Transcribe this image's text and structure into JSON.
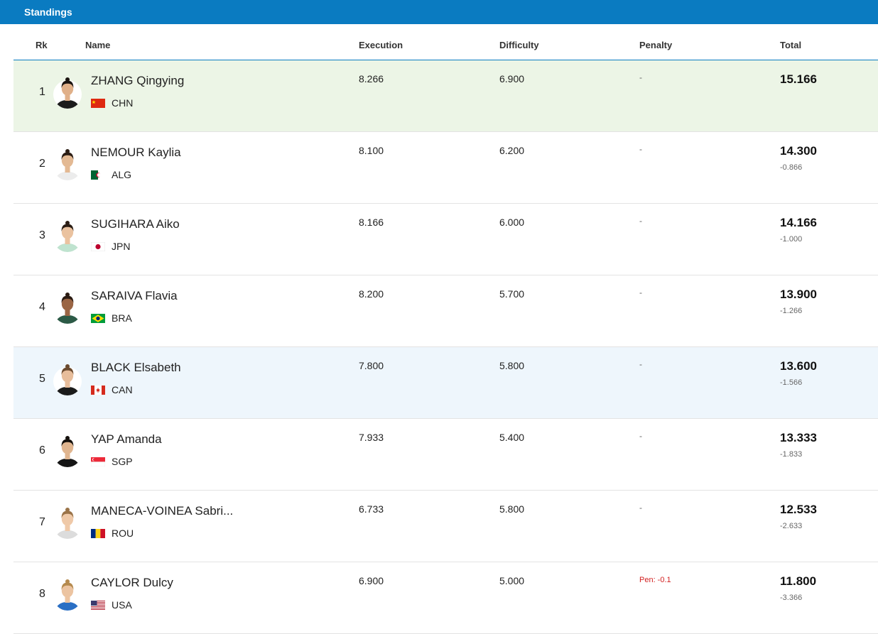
{
  "header": {
    "title": "Standings"
  },
  "columns": {
    "rank": "Rk",
    "name": "Name",
    "execution": "Execution",
    "difficulty": "Difficulty",
    "penalty": "Penalty",
    "total": "Total"
  },
  "rows": [
    {
      "rank": "1",
      "name": "ZHANG Qingying",
      "noc": "CHN",
      "flag": "chn",
      "execution": "8.266",
      "difficulty": "6.900",
      "penalty": "-",
      "total": "15.166",
      "behind": "",
      "highlight": "green",
      "kit": "#1c1c1c",
      "skin": "#e0b089",
      "hair": "#1a1410"
    },
    {
      "rank": "2",
      "name": "NEMOUR Kaylia",
      "noc": "ALG",
      "flag": "alg",
      "execution": "8.100",
      "difficulty": "6.200",
      "penalty": "-",
      "total": "14.300",
      "behind": "-0.866",
      "highlight": "",
      "kit": "#ececec",
      "skin": "#e3b993",
      "hair": "#2b1d14"
    },
    {
      "rank": "3",
      "name": "SUGIHARA Aiko",
      "noc": "JPN",
      "flag": "jpn",
      "execution": "8.166",
      "difficulty": "6.000",
      "penalty": "-",
      "total": "14.166",
      "behind": "-1.000",
      "highlight": "",
      "kit": "#bfe3cf",
      "skin": "#eac29f",
      "hair": "#2a1d14"
    },
    {
      "rank": "4",
      "name": "SARAIVA Flavia",
      "noc": "BRA",
      "flag": "bra",
      "execution": "8.200",
      "difficulty": "5.700",
      "penalty": "-",
      "total": "13.900",
      "behind": "-1.266",
      "highlight": "",
      "kit": "#2c5a46",
      "skin": "#9a6544",
      "hair": "#2a1a12"
    },
    {
      "rank": "5",
      "name": "BLACK Elsabeth",
      "noc": "CAN",
      "flag": "can",
      "execution": "7.800",
      "difficulty": "5.800",
      "penalty": "-",
      "total": "13.600",
      "behind": "-1.566",
      "highlight": "blue",
      "kit": "#1b1b1b",
      "skin": "#e7bd9b",
      "hair": "#6b4a2e"
    },
    {
      "rank": "6",
      "name": "YAP Amanda",
      "noc": "SGP",
      "flag": "sgp",
      "execution": "7.933",
      "difficulty": "5.400",
      "penalty": "-",
      "total": "13.333",
      "behind": "-1.833",
      "highlight": "",
      "kit": "#151515",
      "skin": "#e0b58f",
      "hair": "#15100c"
    },
    {
      "rank": "7",
      "name": "MANECA-VOINEA Sabri...",
      "noc": "ROU",
      "flag": "rou",
      "execution": "6.733",
      "difficulty": "5.800",
      "penalty": "-",
      "total": "12.533",
      "behind": "-2.633",
      "highlight": "",
      "kit": "#dcdcdc",
      "skin": "#efc9a8",
      "hair": "#9a7348"
    },
    {
      "rank": "8",
      "name": "CAYLOR Dulcy",
      "noc": "USA",
      "flag": "usa",
      "execution": "6.900",
      "difficulty": "5.000",
      "penalty": "Pen: -0.1",
      "penRed": true,
      "total": "11.800",
      "behind": "-3.366",
      "highlight": "",
      "kit": "#2a6fc4",
      "skin": "#ecc4a1",
      "hair": "#b58a4e"
    }
  ]
}
